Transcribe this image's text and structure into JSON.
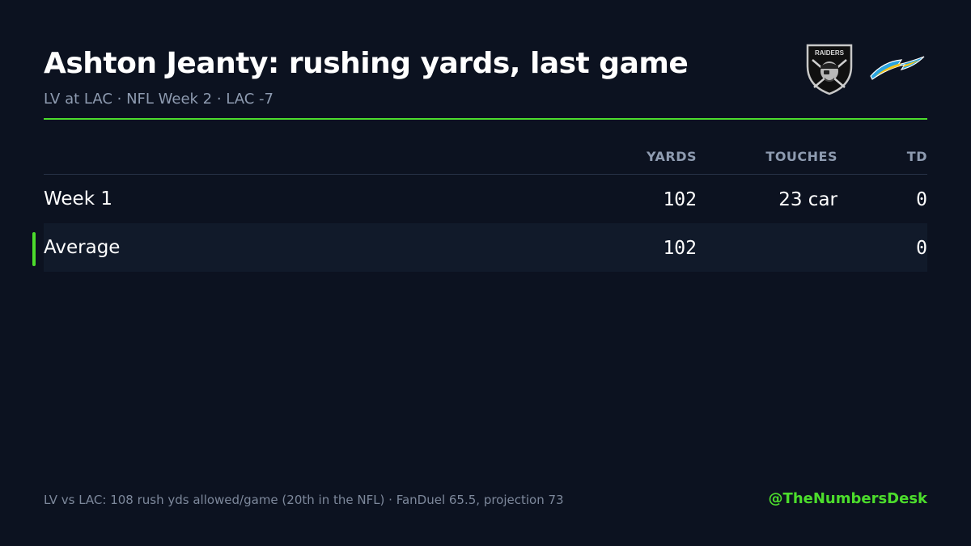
{
  "header": {
    "title": "Ashton Jeanty: rushing yards, last game",
    "subtitle": "LV at LAC · NFL Week 2 · LAC -7",
    "logos": [
      {
        "team": "LV",
        "icon": "raiders-shield-logo",
        "text": "RAIDERS"
      },
      {
        "team": "LAC",
        "icon": "chargers-lightning-bolt-logo"
      }
    ]
  },
  "table": {
    "columns": [
      "YARDS",
      "TOUCHES",
      "TD"
    ],
    "rows": [
      {
        "label": "Week 1",
        "yards": "102",
        "touches": "23 car",
        "td": "0"
      },
      {
        "label": "Average",
        "yards": "102",
        "touches": "",
        "td": "0"
      }
    ]
  },
  "footer": {
    "note": "LV vs LAC: 108 rush yds allowed/game (20th in the NFL) · FanDuel 65.5, projection 73",
    "handle": "@TheNumbersDesk"
  },
  "colors": {
    "background": "#0c1220",
    "accent": "#4cdc2c",
    "muted_text": "#8e9bb0",
    "alt_row": "#111a2a"
  }
}
